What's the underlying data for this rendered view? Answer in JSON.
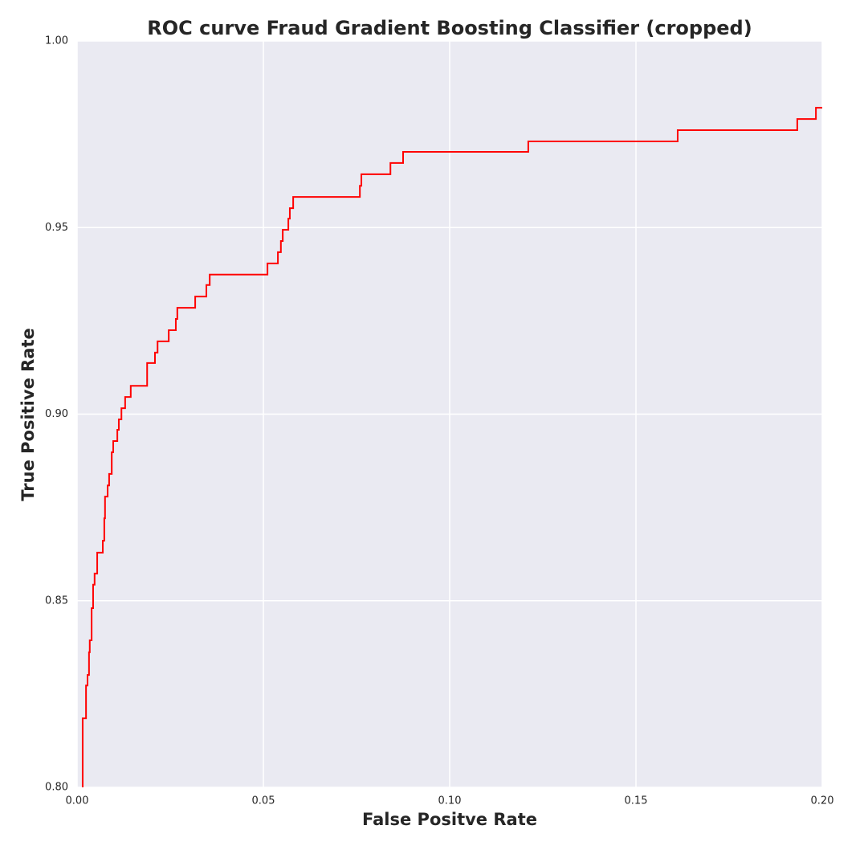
{
  "chart_data": {
    "type": "line",
    "title": "ROC curve Fraud Gradient Boosting Classifier (cropped)",
    "x_label": "False Positve Rate",
    "y_label": "True Positive Rate",
    "xlim": [
      0,
      0.2
    ],
    "ylim": [
      0.8,
      1.0
    ],
    "xticks": [
      {
        "value": 0,
        "label": "0.00"
      },
      {
        "value": 0.05,
        "label": "0.05"
      },
      {
        "value": 0.1,
        "label": "0.10"
      },
      {
        "value": 0.15,
        "label": "0.15"
      },
      {
        "value": 0.2,
        "label": "0.20"
      }
    ],
    "yticks": [
      {
        "value": 0.8,
        "label": "0.80"
      },
      {
        "value": 0.85,
        "label": "0.85"
      },
      {
        "value": 0.9,
        "label": "0.90"
      },
      {
        "value": 0.95,
        "label": "0.95"
      },
      {
        "value": 1.0,
        "label": "1.00"
      }
    ],
    "grid": true,
    "series": [
      {
        "color": "#ff0000",
        "x": [
          0.0015,
          0.0015,
          0.0024,
          0.0024,
          0.0028,
          0.0028,
          0.0032,
          0.0032,
          0.0034,
          0.0034,
          0.0039,
          0.0039,
          0.0043,
          0.0043,
          0.0047,
          0.0047,
          0.0054,
          0.0054,
          0.0069,
          0.0069,
          0.0073,
          0.0073,
          0.0075,
          0.0075,
          0.0082,
          0.0082,
          0.0086,
          0.0086,
          0.0093,
          0.0093,
          0.0097,
          0.0097,
          0.0108,
          0.0108,
          0.0112,
          0.0112,
          0.0119,
          0.0119,
          0.0129,
          0.0129,
          0.0144,
          0.0144,
          0.0188,
          0.0188,
          0.0209,
          0.0209,
          0.0216,
          0.0216,
          0.0246,
          0.0246,
          0.0265,
          0.0265,
          0.0269,
          0.0269,
          0.0317,
          0.0317,
          0.0347,
          0.0347,
          0.0356,
          0.0356,
          0.0511,
          0.0511,
          0.0539,
          0.0539,
          0.0547,
          0.0547,
          0.0552,
          0.0552,
          0.0567,
          0.0567,
          0.0571,
          0.0571,
          0.058,
          0.058,
          0.0759,
          0.0759,
          0.0763,
          0.0763,
          0.0841,
          0.0841,
          0.0875,
          0.0875,
          0.1211,
          0.1211,
          0.1612,
          0.1612,
          0.1933,
          0.1933,
          0.1983,
          0.1983,
          0.2
        ],
        "values": [
          0.8,
          0.8185,
          0.8185,
          0.8273,
          0.8273,
          0.8301,
          0.8301,
          0.8362,
          0.8362,
          0.8394,
          0.8394,
          0.848,
          0.848,
          0.8543,
          0.8543,
          0.8573,
          0.8573,
          0.8629,
          0.8629,
          0.8661,
          0.8661,
          0.8721,
          0.8721,
          0.8779,
          0.8779,
          0.8809,
          0.8809,
          0.884,
          0.884,
          0.8898,
          0.8898,
          0.8928,
          0.8928,
          0.8958,
          0.8958,
          0.8986,
          0.8986,
          0.9016,
          0.9016,
          0.9046,
          0.9046,
          0.9076,
          0.9076,
          0.9137,
          0.9137,
          0.9165,
          0.9165,
          0.9195,
          0.9195,
          0.9225,
          0.9225,
          0.9255,
          0.9255,
          0.9285,
          0.9285,
          0.9315,
          0.9315,
          0.9346,
          0.9346,
          0.9374,
          0.9374,
          0.9404,
          0.9404,
          0.9434,
          0.9434,
          0.9464,
          0.9464,
          0.9494,
          0.9494,
          0.9524,
          0.9524,
          0.9552,
          0.9552,
          0.9582,
          0.9582,
          0.9612,
          0.9612,
          0.9643,
          0.9643,
          0.9673,
          0.9673,
          0.9703,
          0.9703,
          0.9731,
          0.9731,
          0.9761,
          0.9761,
          0.9791,
          0.9791,
          0.9821,
          0.9821
        ]
      }
    ]
  }
}
